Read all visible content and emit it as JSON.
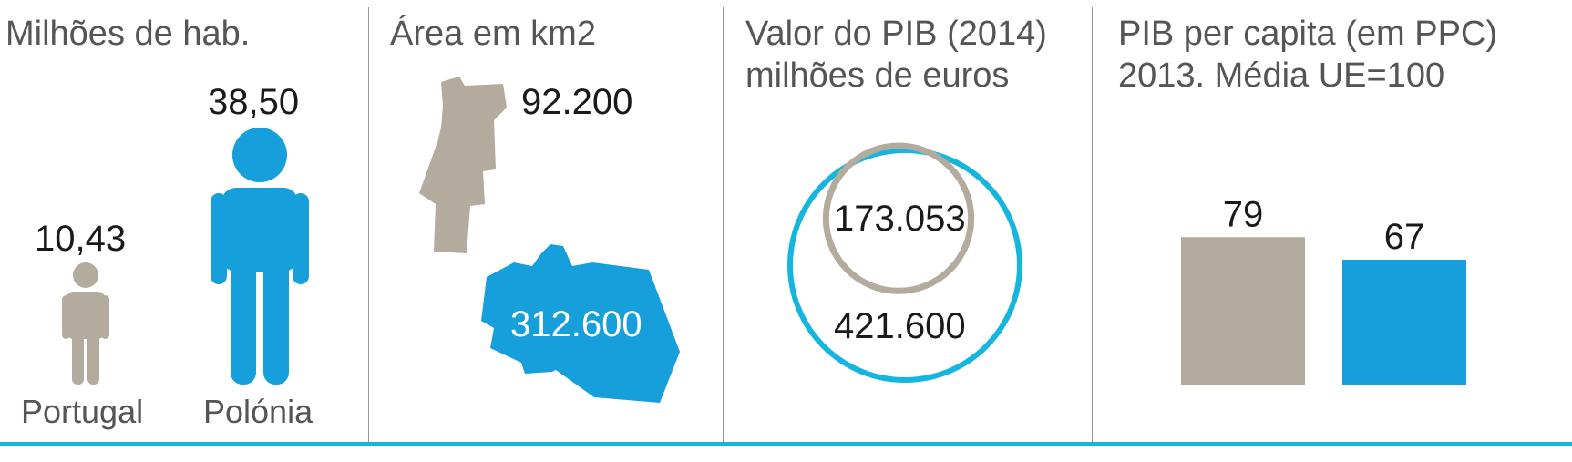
{
  "colors": {
    "portugal": "#b3ab9d",
    "polonia": "#169fdb",
    "circle_outline": "#16b5dd",
    "rule": "#16b5dd",
    "divider": "#999999"
  },
  "panels": {
    "population": {
      "title": "Milhões de hab."
    },
    "area": {
      "title": "Área em km2"
    },
    "gdp": {
      "title_line1": "Valor do PIB (2014)",
      "title_line2": "milhões de euros"
    },
    "gdp_pc": {
      "title_line1": "PIB per capita (em PPC)",
      "title_line2": "2013. Média UE=100"
    }
  },
  "chart_data": [
    {
      "type": "pictograph",
      "title": "Milhões de hab.",
      "categories": [
        "Portugal",
        "Polónia"
      ],
      "values": [
        10.43,
        38.5
      ],
      "value_labels": [
        "10,43",
        "38,50"
      ],
      "icon": "person-icon"
    },
    {
      "type": "pictograph",
      "title": "Área em km2",
      "categories": [
        "Portugal",
        "Polónia"
      ],
      "values": [
        92200,
        312600
      ],
      "value_labels": [
        "92.200",
        "312.600"
      ],
      "icon": "country-map-icon"
    },
    {
      "type": "proportional-circles",
      "title": "Valor do PIB (2014) milhões de euros",
      "categories": [
        "Portugal",
        "Polónia"
      ],
      "values": [
        173053,
        421600
      ],
      "value_labels": [
        "173.053",
        "421.600"
      ]
    },
    {
      "type": "bar",
      "title": "PIB per capita (em PPC) 2013. Média UE=100",
      "categories": [
        "Portugal",
        "Polónia"
      ],
      "values": [
        79,
        67
      ],
      "value_labels": [
        "79",
        "67"
      ]
    }
  ]
}
